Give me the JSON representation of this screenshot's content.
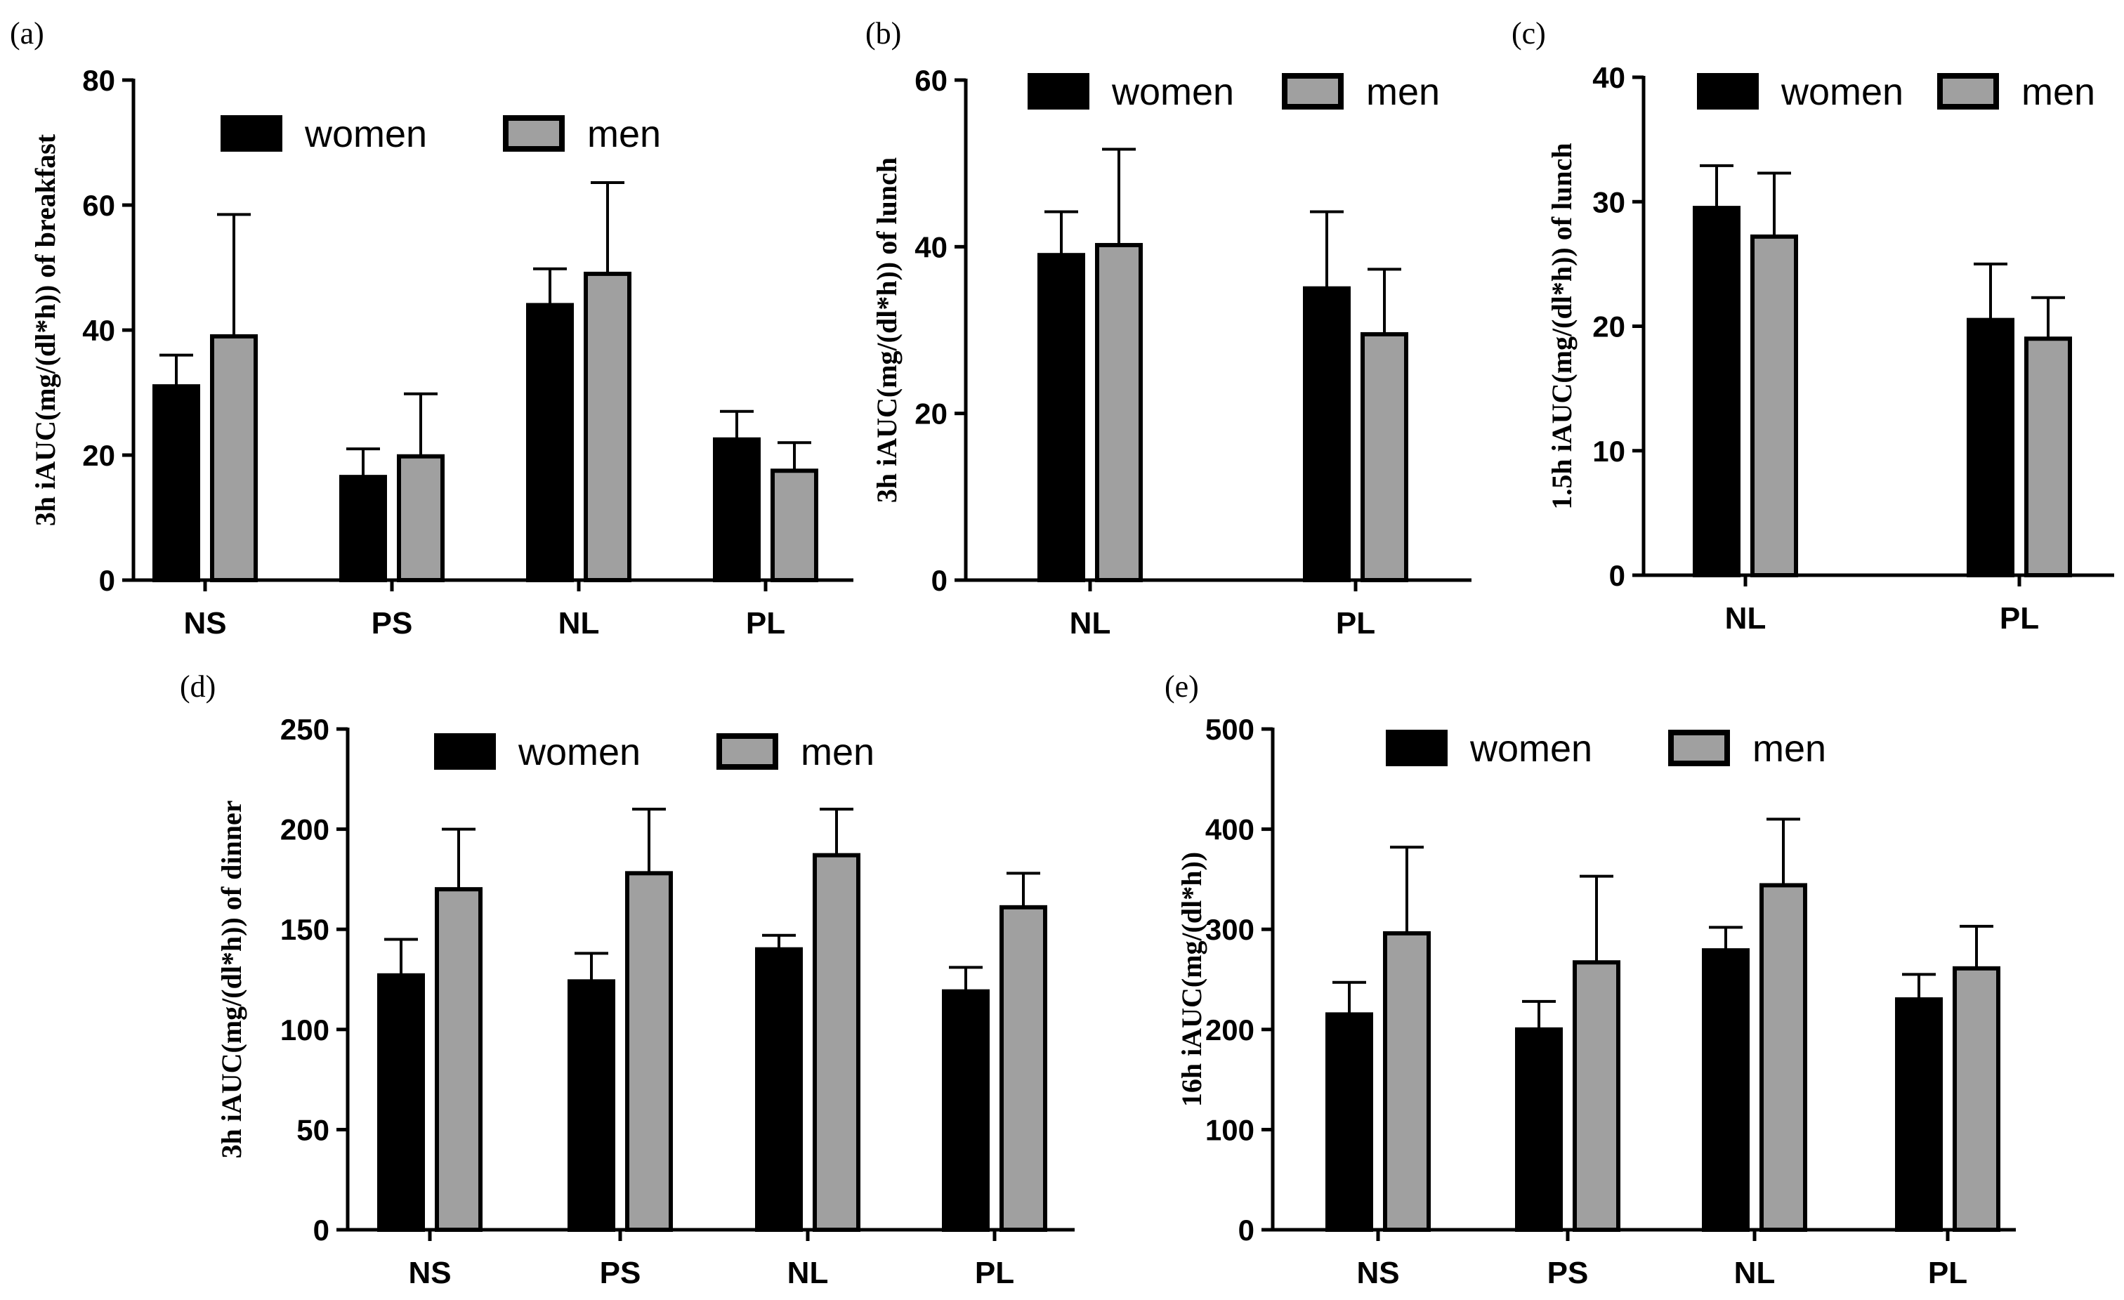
{
  "colors": {
    "women": "#000000",
    "men": "#a0a0a0",
    "axis": "#000000"
  },
  "chart_data": [
    {
      "panel": "(a)",
      "type": "bar",
      "ylabel": "3h iAUC(mg/(dl*h)) of breakfast",
      "categories": [
        "NS",
        "PS",
        "NL",
        "PL"
      ],
      "ylim": [
        0,
        80
      ],
      "yticks": [
        "0",
        "20",
        "40",
        "60",
        "80"
      ],
      "legend": [
        "women",
        "men"
      ],
      "series": [
        {
          "name": "women",
          "values": [
            31,
            16.5,
            44,
            22.5
          ],
          "errors": [
            5,
            4.5,
            5.8,
            4.5
          ]
        },
        {
          "name": "men",
          "values": [
            39,
            19.8,
            49,
            17.5
          ],
          "errors": [
            19.5,
            10,
            14.6,
            4.5
          ]
        }
      ]
    },
    {
      "panel": "(b)",
      "type": "bar",
      "ylabel": "3h iAUC(mg/(dl*h)) of lunch",
      "categories": [
        "NL",
        "PL"
      ],
      "ylim": [
        0,
        60
      ],
      "yticks": [
        "0",
        "20",
        "40",
        "60"
      ],
      "legend": [
        "women",
        "men"
      ],
      "series": [
        {
          "name": "women",
          "values": [
            39,
            35
          ],
          "errors": [
            5.2,
            9.2
          ]
        },
        {
          "name": "men",
          "values": [
            40.2,
            29.5
          ],
          "errors": [
            11.5,
            7.8
          ]
        }
      ]
    },
    {
      "panel": "(c)",
      "type": "bar",
      "ylabel": "1.5h iAUC(mg/(dl*h)) of lunch",
      "categories": [
        "NL",
        "PL"
      ],
      "ylim": [
        0,
        40
      ],
      "yticks": [
        "0",
        "10",
        "20",
        "30",
        "40"
      ],
      "legend": [
        "women",
        "men"
      ],
      "series": [
        {
          "name": "women",
          "values": [
            29.5,
            20.5
          ],
          "errors": [
            3.4,
            4.5
          ]
        },
        {
          "name": "men",
          "values": [
            27.2,
            19
          ],
          "errors": [
            5.1,
            3.3
          ]
        }
      ]
    },
    {
      "panel": "(d)",
      "type": "bar",
      "ylabel": "3h iAUC(mg/(dl*h)) of dinner",
      "categories": [
        "NS",
        "PS",
        "NL",
        "PL"
      ],
      "ylim": [
        0,
        250
      ],
      "yticks": [
        "0",
        "50",
        "100",
        "150",
        "200",
        "250"
      ],
      "legend": [
        "women",
        "men"
      ],
      "series": [
        {
          "name": "women",
          "values": [
            127,
            124,
            140,
            119
          ],
          "errors": [
            18,
            14,
            7,
            12
          ]
        },
        {
          "name": "men",
          "values": [
            170,
            178,
            187,
            161
          ],
          "errors": [
            30,
            32,
            23,
            17
          ]
        }
      ]
    },
    {
      "panel": "(e)",
      "type": "bar",
      "ylabel": "16h iAUC(mg/(dl*h))",
      "categories": [
        "NS",
        "PS",
        "NL",
        "PL"
      ],
      "ylim": [
        0,
        500
      ],
      "yticks": [
        "0",
        "100",
        "200",
        "300",
        "400",
        "500"
      ],
      "legend": [
        "women",
        "men"
      ],
      "series": [
        {
          "name": "women",
          "values": [
            215,
            200,
            279,
            230
          ],
          "errors": [
            32,
            28,
            23,
            25
          ]
        },
        {
          "name": "men",
          "values": [
            296,
            267,
            344,
            261
          ],
          "errors": [
            86,
            86,
            66,
            42
          ]
        }
      ]
    }
  ]
}
